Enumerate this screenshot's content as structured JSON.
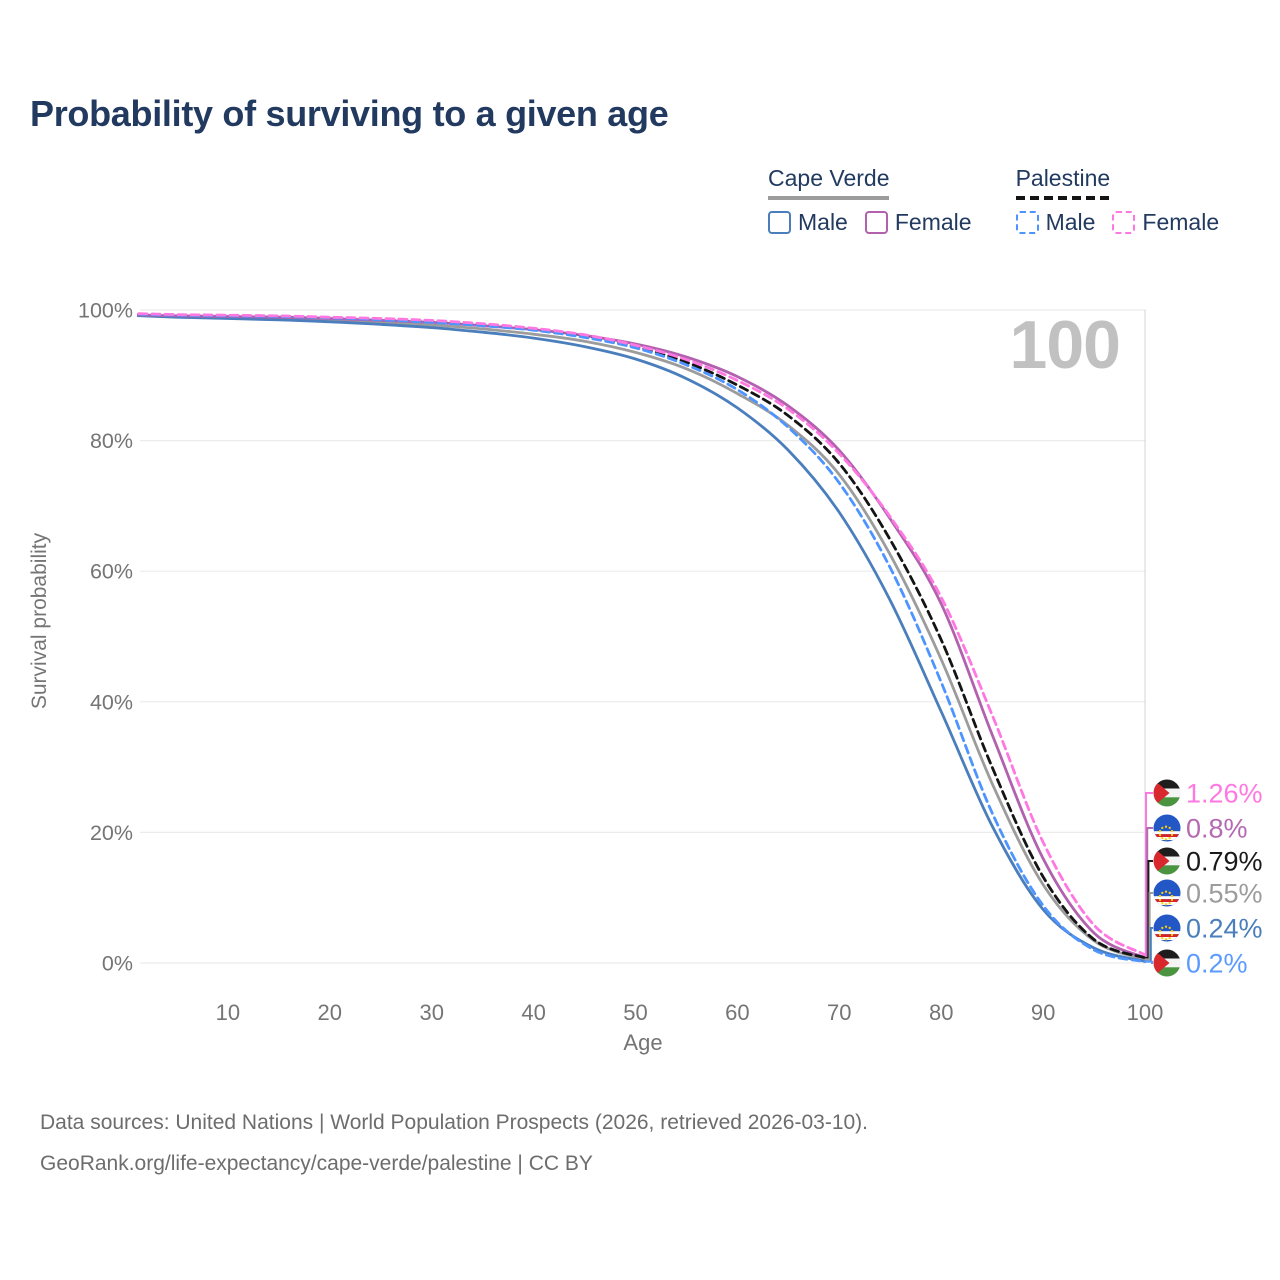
{
  "header": {
    "title": "Probability of surviving to a given age"
  },
  "watermark": "100",
  "legend": {
    "groups": [
      {
        "name": "Cape Verde",
        "style": "solid",
        "underline_color": "#9c9c9c",
        "items": [
          {
            "label": "Male",
            "color": "#4a7ebc"
          },
          {
            "label": "Female",
            "color": "#b161ae"
          }
        ]
      },
      {
        "name": "Palestine",
        "style": "dashed",
        "underline_color": "#141414",
        "items": [
          {
            "label": "Male",
            "color": "#4d94ff"
          },
          {
            "label": "Female",
            "color": "#ff77e1"
          }
        ]
      }
    ]
  },
  "chart_data": {
    "type": "line",
    "title": "Probability of surviving to a given age",
    "xlabel": "Age",
    "ylabel": "Survival probability",
    "xlim": [
      0,
      100
    ],
    "ylim": [
      0,
      100
    ],
    "grid": "horizontal",
    "x_ticks": [
      10,
      20,
      30,
      40,
      50,
      60,
      70,
      80,
      90,
      100
    ],
    "y_ticks": [
      {
        "value": 0,
        "label": "0%"
      },
      {
        "value": 20,
        "label": "20%"
      },
      {
        "value": 40,
        "label": "40%"
      },
      {
        "value": 60,
        "label": "60%"
      },
      {
        "value": 80,
        "label": "80%"
      },
      {
        "value": 100,
        "label": "100%"
      }
    ],
    "x": [
      0,
      5,
      10,
      15,
      20,
      25,
      30,
      35,
      40,
      45,
      50,
      55,
      60,
      65,
      70,
      75,
      80,
      85,
      90,
      95,
      100
    ],
    "series": [
      {
        "id": "cape-verde-both",
        "name": "Cape Verde (both sexes)",
        "color": "#9c9c9c",
        "line": "solid",
        "values": [
          99.25,
          99.0,
          98.85,
          98.7,
          98.45,
          98.1,
          97.7,
          97.1,
          96.3,
          95.2,
          93.5,
          91.0,
          87.2,
          82.3,
          74.8,
          62.5,
          46.5,
          27.5,
          12.0,
          3.4,
          0.55
        ]
      },
      {
        "id": "cape-verde-male",
        "name": "Cape Verde Male",
        "color": "#4a7ebc",
        "line": "solid",
        "values": [
          99.2,
          98.9,
          98.7,
          98.5,
          98.2,
          97.8,
          97.3,
          96.6,
          95.7,
          94.4,
          92.5,
          89.5,
          85.0,
          78.5,
          69.0,
          55.5,
          38.5,
          21.0,
          8.2,
          2.3,
          0.24
        ]
      },
      {
        "id": "cape-verde-female",
        "name": "Cape Verde Female",
        "color": "#b161ae",
        "line": "solid",
        "values": [
          99.3,
          99.1,
          99.0,
          98.9,
          98.7,
          98.4,
          98.1,
          97.6,
          97.0,
          96.1,
          94.8,
          92.8,
          89.8,
          85.3,
          78.5,
          68.0,
          55.0,
          35.0,
          16.0,
          4.6,
          0.8
        ]
      },
      {
        "id": "palestine-both",
        "name": "Palestine (both sexes)",
        "color": "#141414",
        "line": "dashed",
        "values": [
          99.45,
          99.25,
          99.15,
          99.05,
          98.85,
          98.6,
          98.25,
          97.75,
          97.05,
          96.0,
          94.4,
          92.0,
          88.5,
          83.8,
          76.5,
          64.8,
          49.5,
          30.0,
          13.2,
          3.6,
          0.79
        ]
      },
      {
        "id": "palestine-male",
        "name": "Palestine Male",
        "color": "#4d94ff",
        "line": "dashed",
        "values": [
          99.4,
          99.2,
          99.1,
          99.0,
          98.8,
          98.5,
          98.1,
          97.6,
          96.9,
          95.8,
          94.2,
          91.6,
          87.8,
          82.0,
          73.5,
          60.5,
          43.0,
          23.0,
          8.8,
          2.0,
          0.2
        ]
      },
      {
        "id": "palestine-female",
        "name": "Palestine Female",
        "color": "#ff77e1",
        "line": "dashed",
        "values": [
          99.5,
          99.3,
          99.2,
          99.1,
          98.9,
          98.7,
          98.4,
          97.9,
          97.2,
          96.2,
          94.6,
          92.4,
          89.2,
          84.8,
          78.0,
          68.3,
          56.0,
          38.0,
          18.5,
          5.8,
          1.26
        ]
      }
    ],
    "end_labels": [
      {
        "flag": "palestine",
        "text": "1.26%",
        "value": 1.26,
        "color": "#ff77e1",
        "series": "palestine-female"
      },
      {
        "flag": "cape-verde",
        "text": "0.8%",
        "value": 0.8,
        "color": "#b46ab2",
        "series": "cape-verde-female"
      },
      {
        "flag": "palestine",
        "text": "0.79%",
        "value": 0.79,
        "color": "#1a1a1a",
        "series": "palestine-both"
      },
      {
        "flag": "cape-verde",
        "text": "0.55%",
        "value": 0.55,
        "color": "#9c9c9c",
        "series": "cape-verde-both"
      },
      {
        "flag": "cape-verde",
        "text": "0.24%",
        "value": 0.24,
        "color": "#4a7ebc",
        "series": "cape-verde-male"
      },
      {
        "flag": "palestine",
        "text": "0.2%",
        "value": 0.2,
        "color": "#5b9bff",
        "series": "palestine-male"
      }
    ]
  },
  "footer": {
    "line1": "Data sources: United Nations | World Population Prospects (2026, retrieved 2026-03-10).",
    "line2": "GeoRank.org/life-expectancy/cape-verde/palestine | CC BY"
  }
}
